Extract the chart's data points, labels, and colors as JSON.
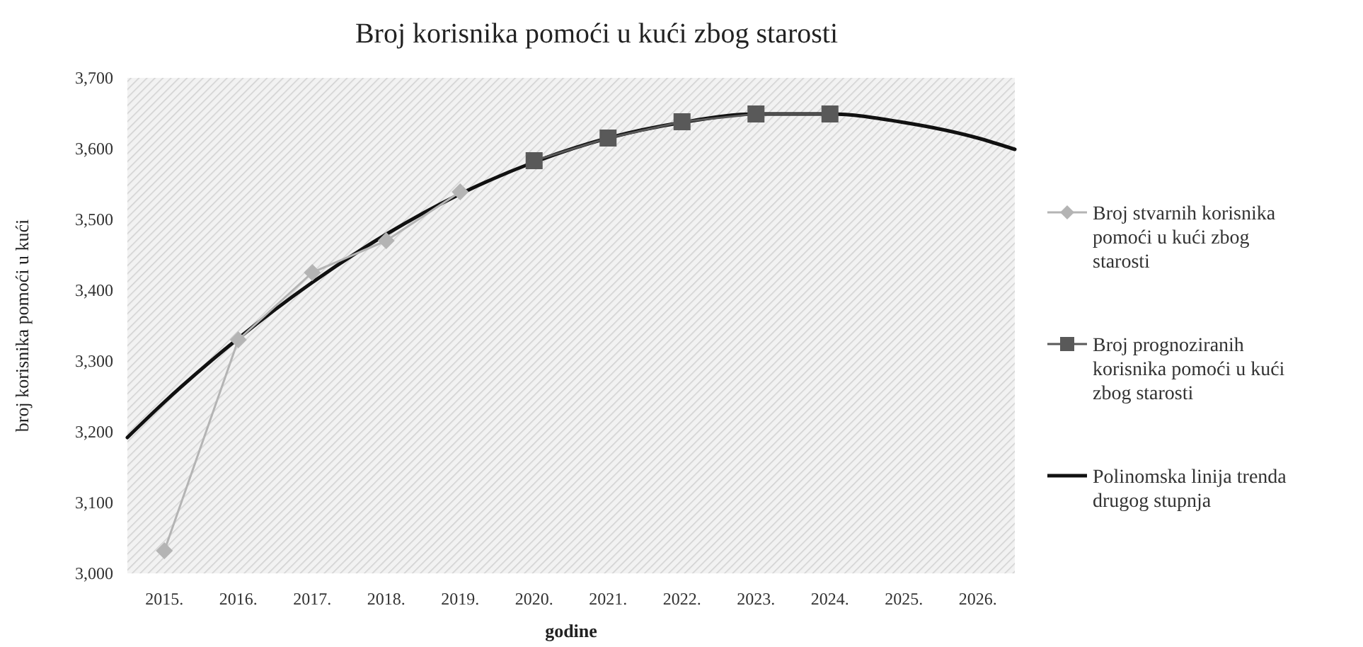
{
  "chart_data": {
    "type": "line",
    "title": "Broj korisnika pomoći u kući zbog starosti",
    "xlabel": "godine",
    "ylabel": "broj korisnika pomoći u kući",
    "xlim": [
      2014.5,
      2026.5
    ],
    "xticks": [
      {
        "value": 2015,
        "label": "2015."
      },
      {
        "value": 2016,
        "label": "2016."
      },
      {
        "value": 2017,
        "label": "2017."
      },
      {
        "value": 2018,
        "label": "2018."
      },
      {
        "value": 2019,
        "label": "2019."
      },
      {
        "value": 2020,
        "label": "2020."
      },
      {
        "value": 2021,
        "label": "2021."
      },
      {
        "value": 2022,
        "label": "2022."
      },
      {
        "value": 2023,
        "label": "2023."
      },
      {
        "value": 2024,
        "label": "2024."
      },
      {
        "value": 2025,
        "label": "2025."
      },
      {
        "value": 2026,
        "label": "2026."
      }
    ],
    "ylim": [
      3000,
      3700
    ],
    "yticks": [
      {
        "value": 3000,
        "label": "3,000"
      },
      {
        "value": 3100,
        "label": "3,100"
      },
      {
        "value": 3200,
        "label": "3,200"
      },
      {
        "value": 3300,
        "label": "3,300"
      },
      {
        "value": 3400,
        "label": "3,400"
      },
      {
        "value": 3500,
        "label": "3,500"
      },
      {
        "value": 3600,
        "label": "3,600"
      },
      {
        "value": 3700,
        "label": "3,700"
      }
    ],
    "grid": false,
    "legend": "right",
    "series": [
      {
        "name": "Broj stvarnih korisnika pomoći u kući zbog starosti",
        "color": "#b4b4b4",
        "marker": "diamond",
        "x": [
          2015,
          2016,
          2017,
          2018,
          2019
        ],
        "values": [
          3032,
          3330,
          3425,
          3470,
          3539
        ]
      },
      {
        "name": "Broj prognoziranih korisnika pomoći u kući zbog starosti",
        "color": "#595959",
        "marker": "square",
        "x": [
          2020,
          2021,
          2022,
          2023,
          2024
        ],
        "values": [
          3583,
          3615,
          3638,
          3649,
          3649
        ]
      },
      {
        "name": "Polinomska linija trenda drugog stupnja",
        "color": "#111111",
        "marker": "none",
        "x": [
          2014.5,
          2015,
          2016,
          2017,
          2018,
          2019,
          2020,
          2021,
          2022,
          2023,
          2024,
          2025,
          2026,
          2026.5
        ],
        "values": [
          3192,
          3242,
          3332,
          3411,
          3479,
          3536,
          3581,
          3615,
          3637,
          3649,
          3649,
          3637,
          3615,
          3599
        ]
      }
    ]
  }
}
